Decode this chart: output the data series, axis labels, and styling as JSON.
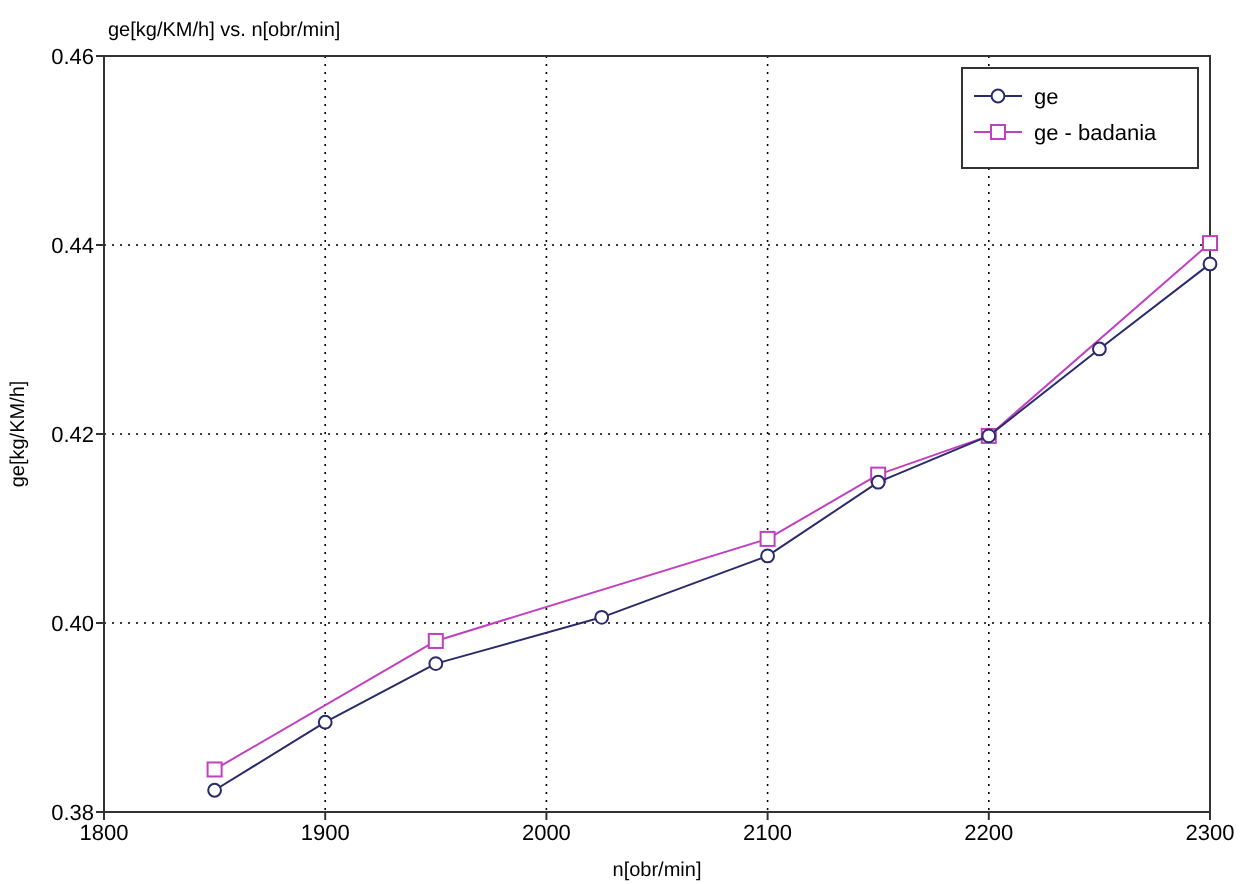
{
  "chart_data": {
    "type": "line",
    "title": "ge[kg/KM/h] vs. n[obr/min]",
    "xlabel": "n[obr/min]",
    "ylabel": "ge[kg/KM/h]",
    "xlim": [
      1800,
      2300
    ],
    "xticks": [
      1800,
      1900,
      2000,
      2100,
      2200,
      2300
    ],
    "ylim": [
      0.38,
      0.46
    ],
    "yticks": [
      {
        "value": 0.38,
        "label": "0.38"
      },
      {
        "value": 0.4,
        "label": "0.40"
      },
      {
        "value": 0.42,
        "label": "0.42"
      },
      {
        "value": 0.44,
        "label": "0.44"
      },
      {
        "value": 0.46,
        "label": "0.46"
      }
    ],
    "grid": true,
    "legend": "top right",
    "line_style": "solid",
    "series": [
      {
        "name": "ge",
        "color": "#2b2b6b",
        "marker": "circle",
        "x": [
          1850,
          1900,
          1950,
          2025,
          2100,
          2150,
          2200,
          2250,
          2300
        ],
        "values": [
          0.3823,
          0.3895,
          0.3957,
          0.4006,
          0.4071,
          0.4149,
          0.4198,
          0.429,
          0.438
        ]
      },
      {
        "name": "ge - badania",
        "color": "#c040c0",
        "marker": "square",
        "x": [
          1850,
          1950,
          2100,
          2150,
          2200,
          2300
        ],
        "values": [
          0.3845,
          0.3981,
          0.4089,
          0.4157,
          0.4198,
          0.4402
        ]
      }
    ]
  }
}
